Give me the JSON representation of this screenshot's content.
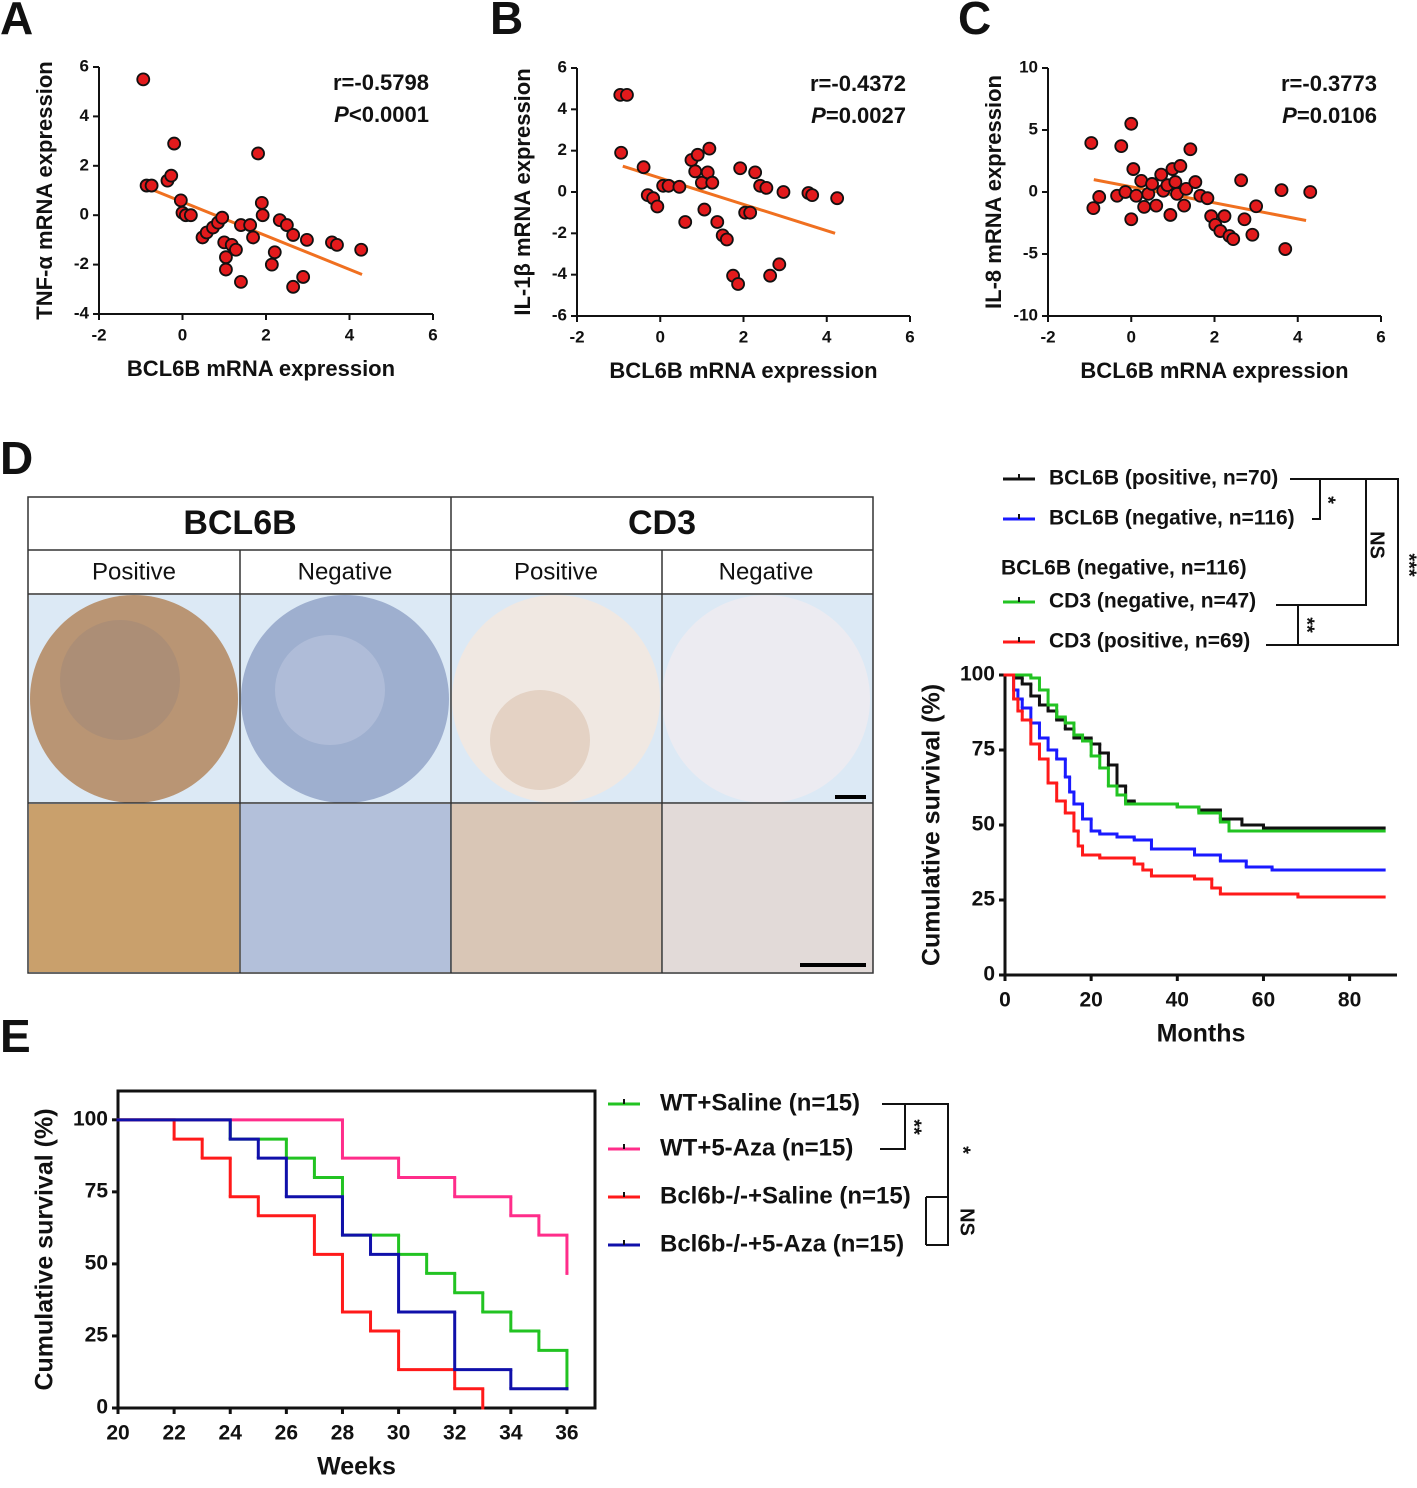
{
  "chart_data": [
    {
      "type": "scatter",
      "panel_label": "A",
      "x_label": "BCL6B mRNA expression",
      "y_label": "TNF-α mRNA expression",
      "annotation": {
        "r": "r=-0.5798",
        "p_symbol": "P",
        "p_value": "<0.0001"
      },
      "color": "#e31a1c",
      "x": [
        -0.94,
        -0.86,
        -0.74,
        -0.36,
        -0.27,
        -0.2,
        -0.04,
        0,
        0.08,
        0.2,
        0.48,
        0.58,
        0.73,
        0.85,
        0.95,
        1.0,
        1.04,
        1.04,
        1.18,
        1.28,
        1.4,
        1.4,
        1.62,
        1.69,
        1.81,
        1.9,
        1.92,
        2.14,
        2.21,
        2.33,
        2.5,
        2.65,
        2.65,
        2.89,
        2.98,
        3.58,
        3.7,
        4.28
      ],
      "values": [
        5.5,
        1.2,
        1.2,
        1.4,
        1.6,
        2.9,
        0.6,
        0.1,
        0,
        0,
        -0.9,
        -0.7,
        -0.5,
        -0.3,
        -0.1,
        -1.1,
        -1.7,
        -2.2,
        -1.2,
        -1.4,
        -2.7,
        -0.4,
        -0.4,
        -0.9,
        2.5,
        0.5,
        0,
        -2.0,
        -1.5,
        -0.2,
        -0.4,
        -0.8,
        -2.9,
        -2.5,
        -1.0,
        -1.1,
        -1.2,
        -1.4
      ],
      "fit": {
        "color": "#f07020",
        "x": [
          -0.9,
          4.3
        ],
        "values": [
          1.15,
          -2.4
        ]
      },
      "xlim": [
        -2,
        6
      ],
      "xticks": [
        -2,
        0,
        2,
        4,
        6
      ],
      "ylim": [
        -4,
        6
      ],
      "yticks": [
        -4,
        -2,
        0,
        2,
        4,
        6
      ]
    },
    {
      "type": "scatter",
      "panel_label": "B",
      "x_label": "BCL6B mRNA expression",
      "y_label": "IL-1β mRNA expression",
      "annotation": {
        "r": "r=-0.4372",
        "p_symbol": "P",
        "p_value": "=0.0027"
      },
      "color": "#e31a1c",
      "x": [
        -0.96,
        -0.8,
        -0.94,
        -0.4,
        -0.3,
        -0.17,
        -0.07,
        0.07,
        0.2,
        0.46,
        0.6,
        0.75,
        0.84,
        0.9,
        1.0,
        1.06,
        1.14,
        1.18,
        1.25,
        1.37,
        1.5,
        1.6,
        1.75,
        1.87,
        1.92,
        2.04,
        2.16,
        2.28,
        2.4,
        2.55,
        2.64,
        2.86,
        2.96,
        3.56,
        3.65,
        4.25
      ],
      "values": [
        4.7,
        4.7,
        1.9,
        1.2,
        -0.15,
        -0.3,
        -0.7,
        0.3,
        0.3,
        0.25,
        -1.45,
        1.55,
        1.0,
        1.8,
        0.45,
        -0.85,
        0.95,
        2.1,
        0.45,
        -1.45,
        -2.1,
        -2.3,
        -4.05,
        -4.45,
        1.15,
        -1.0,
        -1.0,
        0.95,
        0.3,
        0.2,
        -4.05,
        -3.5,
        0,
        -0.05,
        -0.15,
        -0.3
      ],
      "fit": {
        "color": "#f07020",
        "x": [
          -0.9,
          4.2
        ],
        "values": [
          1.25,
          -2.0
        ]
      },
      "xlim": [
        -2,
        6
      ],
      "xticks": [
        -2,
        0,
        2,
        4,
        6
      ],
      "ylim": [
        -6,
        6
      ],
      "yticks": [
        -6,
        -4,
        -2,
        0,
        2,
        4,
        6
      ]
    },
    {
      "type": "scatter",
      "panel_label": "C",
      "x_label": "BCL6B mRNA expression",
      "y_label": "IL-8 mRNA expression",
      "annotation": {
        "r": "r=-0.3773",
        "p_symbol": "P",
        "p_value": "=0.0106"
      },
      "color": "#e31a1c",
      "x": [
        -0.96,
        -0.91,
        -0.77,
        -0.34,
        -0.24,
        -0.14,
        0,
        0,
        0.05,
        0.12,
        0.24,
        0.31,
        0.41,
        0.5,
        0.6,
        0.72,
        0.77,
        0.87,
        0.94,
        0.99,
        1.06,
        1.1,
        1.18,
        1.27,
        1.32,
        1.42,
        1.54,
        1.66,
        1.83,
        1.92,
        2.02,
        2.14,
        2.24,
        2.36,
        2.45,
        2.64,
        2.72,
        2.91,
        3.0,
        3.61,
        3.7,
        4.3
      ],
      "values": [
        3.95,
        -1.3,
        -0.4,
        -0.3,
        3.7,
        0,
        5.5,
        -2.2,
        1.85,
        -0.3,
        0.9,
        -1.2,
        -0.15,
        0.65,
        -1.1,
        1.4,
        0.1,
        0.55,
        -1.85,
        1.85,
        0.8,
        -0.15,
        2.1,
        -1.1,
        0.25,
        3.45,
        0.8,
        -0.3,
        -0.5,
        -1.95,
        -2.65,
        -3.15,
        -1.95,
        -3.55,
        -3.8,
        0.95,
        -2.2,
        -3.45,
        -1.15,
        0.15,
        -4.6,
        0
      ],
      "fit": {
        "color": "#f07020",
        "x": [
          -0.9,
          4.2
        ],
        "values": [
          1.0,
          -2.3
        ]
      },
      "xlim": [
        -2,
        6
      ],
      "xticks": [
        -2,
        0,
        2,
        4,
        6
      ],
      "ylim": [
        -10,
        10
      ],
      "yticks": [
        -10,
        -5,
        0,
        5,
        10
      ]
    },
    {
      "type": "survival",
      "x_label": "Months",
      "y_label": "Cumulative survival (%)",
      "legend_heading": "BCL6B (negative, n=116)",
      "significance": [
        "*",
        "NS",
        "***",
        "**"
      ],
      "xlim": [
        0,
        91
      ],
      "xticks": [
        0,
        20,
        40,
        60,
        80
      ],
      "ylim": [
        0,
        100
      ],
      "yticks": [
        0,
        25,
        50,
        75,
        100
      ],
      "series": [
        {
          "name": "BCL6B (positive, n=70)",
          "color": "#111111",
          "x": [
            0,
            2,
            4,
            6,
            8,
            10,
            12,
            14,
            16,
            20,
            22,
            24,
            26,
            28,
            30,
            40,
            45,
            50,
            55,
            60,
            88
          ],
          "values": [
            100,
            99,
            97,
            93,
            90,
            88,
            85,
            82,
            79,
            77,
            74,
            70,
            63,
            58,
            57,
            56,
            55,
            52,
            50,
            49,
            49
          ]
        },
        {
          "name": "BCL6B (negative, n=116)",
          "color": "#1a1aff",
          "x": [
            0,
            2,
            3,
            4,
            6,
            8,
            10,
            12,
            14,
            15,
            16,
            18,
            20,
            22,
            26,
            30,
            34,
            40,
            44,
            50,
            56,
            62,
            80,
            88
          ],
          "values": [
            100,
            95,
            92,
            89,
            84,
            79,
            75,
            72,
            66,
            61,
            57,
            52,
            48,
            47,
            46,
            45,
            42,
            42,
            40,
            38,
            36,
            35,
            35,
            35
          ]
        },
        {
          "name": "CD3 (negative, n=47)",
          "color": "#22c322",
          "x": [
            0,
            6,
            8,
            10,
            12,
            14,
            16,
            18,
            20,
            22,
            24,
            26,
            28,
            40,
            45,
            50,
            52,
            88
          ],
          "values": [
            100,
            99,
            95,
            90,
            86,
            84,
            80,
            78,
            73,
            69,
            63,
            60,
            57,
            56,
            54,
            51,
            48,
            48
          ]
        },
        {
          "name": "CD3 (positive, n=69)",
          "color": "#ff1a1a",
          "x": [
            0,
            2,
            3,
            4,
            6,
            8,
            10,
            12,
            14,
            16,
            17,
            18,
            22,
            30,
            32,
            34,
            44,
            48,
            50,
            60,
            68,
            88
          ],
          "values": [
            100,
            92,
            88,
            85,
            77,
            72,
            64,
            58,
            54,
            48,
            43,
            40,
            39,
            37,
            35,
            33,
            32,
            29,
            27,
            27,
            26,
            26
          ]
        }
      ]
    },
    {
      "type": "survival",
      "panel_label": "E",
      "x_label": "Weeks",
      "y_label": "Cumulative survival (%)",
      "significance": [
        "**",
        "*",
        "NS"
      ],
      "xlim": [
        20,
        37
      ],
      "xticks": [
        20,
        22,
        24,
        26,
        28,
        30,
        32,
        34,
        36
      ],
      "ylim": [
        0,
        110
      ],
      "yticks": [
        0,
        25,
        50,
        75,
        100
      ],
      "series": [
        {
          "name": "WT+Saline (n=15)",
          "color": "#22c322",
          "x": [
            20,
            24,
            26,
            27,
            28,
            30,
            31,
            32,
            33,
            34,
            35,
            36
          ],
          "values": [
            100,
            93.3,
            86.7,
            80,
            60,
            53.3,
            46.7,
            40,
            33.3,
            26.7,
            20,
            6.7
          ]
        },
        {
          "name": "WT+5-Aza (n=15)",
          "color": "#ff2d8a",
          "x": [
            20,
            28,
            30,
            32,
            34,
            35,
            36
          ],
          "values": [
            100,
            86.7,
            80,
            73.3,
            66.7,
            60,
            46.7
          ]
        },
        {
          "name": "Bcl6b-/-+Saline (n=15)",
          "color": "#ff1a1a",
          "x": [
            20,
            22,
            23,
            24,
            25,
            27,
            28,
            29,
            30,
            32,
            33
          ],
          "values": [
            100,
            93.3,
            86.7,
            73.3,
            66.7,
            53.3,
            33.3,
            26.7,
            13.3,
            6.7,
            0
          ]
        },
        {
          "name": "Bcl6b-/-+5-Aza (n=15)",
          "color": "#1010aa",
          "x": [
            20,
            24,
            25,
            26,
            28,
            29,
            30,
            32,
            34,
            36
          ],
          "values": [
            100,
            93.3,
            86.7,
            73.3,
            60,
            53.3,
            33.3,
            13.3,
            6.7,
            6.7
          ]
        }
      ]
    }
  ],
  "ihc_panel": {
    "panel_label": "D",
    "headers": [
      "BCL6B",
      "CD3"
    ],
    "subheaders": [
      "Positive",
      "Negative",
      "Positive",
      "Negative"
    ]
  }
}
